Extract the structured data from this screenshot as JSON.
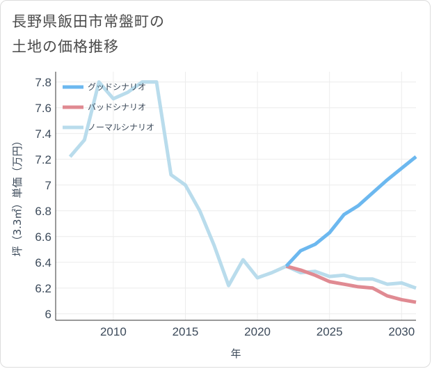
{
  "title_line1": "長野県飯田市常盤町の",
  "title_line2": "土地の価格推移",
  "chart_data": {
    "type": "line",
    "title": "長野県飯田市常盤町の土地の価格推移",
    "xlabel": "年",
    "ylabel": "坪（3.3㎡）単価（万円）",
    "xlim": [
      2006,
      2031
    ],
    "ylim": [
      5.95,
      7.88
    ],
    "x_ticks": [
      2010,
      2015,
      2020,
      2025,
      2030
    ],
    "y_ticks": [
      6,
      6.2,
      6.4,
      6.6,
      6.8,
      7,
      7.2,
      7.4,
      7.6,
      7.8
    ],
    "y_tick_labels": [
      "6",
      "6.2",
      "6.4",
      "6.6",
      "6.8",
      "7",
      "7.2",
      "7.4",
      "7.6",
      "7.8"
    ],
    "legend_position": "top-left",
    "series": [
      {
        "name": "グッドシナリオ",
        "color": "#6cb8ef",
        "x": [
          2022,
          2023,
          2024,
          2025,
          2026,
          2027,
          2028,
          2029,
          2030,
          2031
        ],
        "y": [
          6.37,
          6.49,
          6.54,
          6.63,
          6.77,
          6.84,
          6.94,
          7.04,
          7.13,
          7.22
        ]
      },
      {
        "name": "バッドシナリオ",
        "color": "#e08a92",
        "x": [
          2022,
          2023,
          2024,
          2025,
          2026,
          2027,
          2028,
          2029,
          2030,
          2031
        ],
        "y": [
          6.37,
          6.34,
          6.3,
          6.25,
          6.23,
          6.21,
          6.2,
          6.14,
          6.11,
          6.09
        ]
      },
      {
        "name": "ノーマルシナリオ",
        "color": "#b9dcec",
        "x": [
          2007,
          2008,
          2009,
          2010,
          2011,
          2012,
          2013,
          2014,
          2015,
          2016,
          2017,
          2018,
          2019,
          2020,
          2021,
          2022,
          2023,
          2024,
          2025,
          2026,
          2027,
          2028,
          2029,
          2030,
          2031
        ],
        "y": [
          7.22,
          7.35,
          7.8,
          7.67,
          7.72,
          7.8,
          7.8,
          7.08,
          7.0,
          6.8,
          6.53,
          6.22,
          6.42,
          6.28,
          6.32,
          6.37,
          6.32,
          6.33,
          6.29,
          6.3,
          6.27,
          6.27,
          6.23,
          6.24,
          6.2
        ]
      }
    ]
  }
}
